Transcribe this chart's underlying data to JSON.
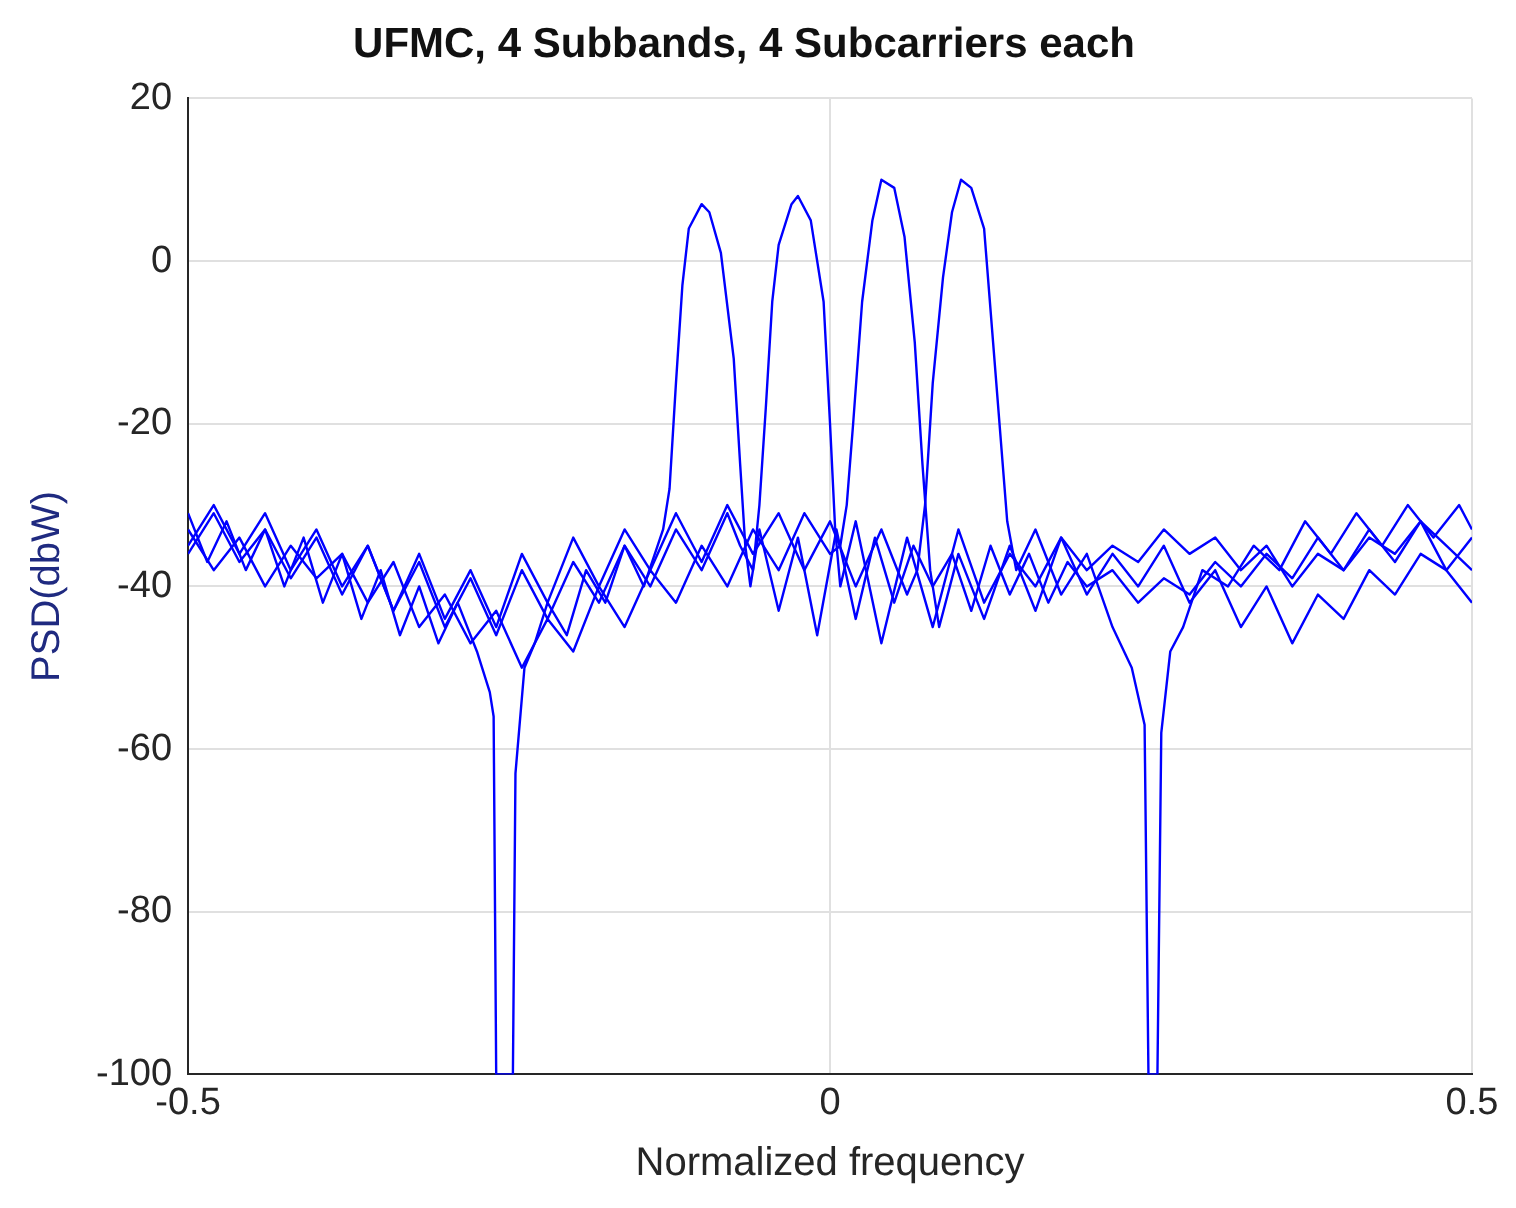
{
  "chart_data": {
    "type": "line",
    "title": "UFMC, 4 Subbands, 4 Subcarriers each",
    "xlabel": "Normalized frequency",
    "ylabel": "PSD(dbW)",
    "xlim": [
      -0.5,
      0.5
    ],
    "xticks": [
      -0.5,
      0,
      0.5
    ],
    "ylim": [
      -100,
      20
    ],
    "yticks": [
      -100,
      -80,
      -60,
      -40,
      -20,
      0,
      20
    ],
    "grid": true,
    "legend": false,
    "marker": "none",
    "line_style": "solid",
    "series": [
      {
        "color": "#0000ff",
        "x": [
          -0.5,
          -0.485,
          -0.47,
          -0.455,
          -0.44,
          -0.425,
          -0.41,
          -0.395,
          -0.38,
          -0.365,
          -0.35,
          -0.335,
          -0.32,
          -0.305,
          -0.29,
          -0.275,
          -0.265,
          -0.262,
          -0.26,
          -0.247,
          -0.245,
          -0.238,
          -0.23,
          -0.22,
          -0.205,
          -0.19,
          -0.175,
          -0.16,
          -0.145,
          -0.13,
          -0.125,
          -0.12,
          -0.115,
          -0.11,
          -0.1,
          -0.094,
          -0.085,
          -0.075,
          -0.07,
          -0.066,
          -0.062,
          -0.055,
          -0.04,
          -0.025,
          -0.01,
          0.005,
          0.02,
          0.035,
          0.05,
          0.065,
          0.08,
          0.095,
          0.11,
          0.125,
          0.14,
          0.155,
          0.17,
          0.185,
          0.2,
          0.22,
          0.24,
          0.26,
          0.28,
          0.3,
          0.32,
          0.34,
          0.36,
          0.38,
          0.4,
          0.42,
          0.44,
          0.46,
          0.48,
          0.5
        ],
        "values": [
          -31,
          -37,
          -32,
          -38,
          -33,
          -40,
          -34,
          -42,
          -36,
          -44,
          -38,
          -46,
          -40,
          -47,
          -42,
          -48,
          -53,
          -56,
          -100,
          -100,
          -63,
          -50,
          -47,
          -42,
          -46,
          -38,
          -42,
          -35,
          -40,
          -33,
          -28,
          -15,
          -3,
          4,
          7,
          6,
          1,
          -12,
          -25,
          -35,
          -40,
          -33,
          -43,
          -34,
          -46,
          -33,
          -44,
          -34,
          -42,
          -35,
          -40,
          -36,
          -43,
          -35,
          -41,
          -36,
          -42,
          -37,
          -40,
          -38,
          -42,
          -39,
          -41,
          -37,
          -40,
          -36,
          -39,
          -34,
          -38,
          -33,
          -37,
          -32,
          -38,
          -42
        ]
      },
      {
        "color": "#0000ff",
        "x": [
          -0.5,
          -0.48,
          -0.46,
          -0.44,
          -0.42,
          -0.4,
          -0.38,
          -0.36,
          -0.34,
          -0.32,
          -0.3,
          -0.28,
          -0.26,
          -0.24,
          -0.22,
          -0.2,
          -0.18,
          -0.16,
          -0.14,
          -0.12,
          -0.1,
          -0.08,
          -0.07,
          -0.06,
          -0.055,
          -0.05,
          -0.045,
          -0.04,
          -0.03,
          -0.025,
          -0.015,
          -0.005,
          0,
          0.004,
          0.008,
          0.02,
          0.04,
          0.06,
          0.08,
          0.1,
          0.12,
          0.14,
          0.16,
          0.18,
          0.2,
          0.22,
          0.24,
          0.26,
          0.28,
          0.3,
          0.32,
          0.34,
          0.36,
          0.38,
          0.4,
          0.42,
          0.44,
          0.46,
          0.48,
          0.5
        ],
        "values": [
          -35,
          -30,
          -36,
          -31,
          -38,
          -33,
          -40,
          -35,
          -43,
          -37,
          -45,
          -39,
          -46,
          -38,
          -44,
          -37,
          -42,
          -35,
          -40,
          -33,
          -38,
          -31,
          -35,
          -38,
          -30,
          -18,
          -5,
          2,
          7,
          8,
          5,
          -5,
          -20,
          -33,
          -40,
          -32,
          -47,
          -34,
          -45,
          -33,
          -42,
          -36,
          -40,
          -34,
          -38,
          -35,
          -37,
          -33,
          -36,
          -34,
          -38,
          -35,
          -40,
          -36,
          -38,
          -34,
          -36,
          -32,
          -35,
          -38
        ]
      },
      {
        "color": "#0000ff",
        "x": [
          -0.5,
          -0.48,
          -0.46,
          -0.44,
          -0.42,
          -0.4,
          -0.38,
          -0.36,
          -0.34,
          -0.32,
          -0.3,
          -0.28,
          -0.26,
          -0.24,
          -0.22,
          -0.2,
          -0.18,
          -0.16,
          -0.14,
          -0.12,
          -0.1,
          -0.08,
          -0.06,
          -0.04,
          -0.02,
          0,
          0.008,
          0.013,
          0.018,
          0.025,
          0.033,
          0.04,
          0.05,
          0.058,
          0.066,
          0.072,
          0.078,
          0.085,
          0.1,
          0.12,
          0.14,
          0.16,
          0.18,
          0.2,
          0.22,
          0.24,
          0.26,
          0.28,
          0.3,
          0.32,
          0.34,
          0.36,
          0.38,
          0.4,
          0.42,
          0.44,
          0.46,
          0.48,
          0.5
        ],
        "values": [
          -33,
          -38,
          -34,
          -40,
          -35,
          -39,
          -36,
          -42,
          -37,
          -45,
          -41,
          -47,
          -43,
          -50,
          -44,
          -48,
          -40,
          -45,
          -38,
          -42,
          -35,
          -40,
          -33,
          -38,
          -31,
          -36,
          -35,
          -30,
          -20,
          -5,
          5,
          10,
          9,
          3,
          -10,
          -25,
          -38,
          -45,
          -36,
          -44,
          -35,
          -43,
          -34,
          -41,
          -36,
          -40,
          -35,
          -42,
          -38,
          -45,
          -40,
          -47,
          -41,
          -44,
          -38,
          -41,
          -36,
          -38,
          -34
        ]
      },
      {
        "color": "#0000ff",
        "x": [
          -0.5,
          -0.48,
          -0.46,
          -0.44,
          -0.42,
          -0.4,
          -0.38,
          -0.36,
          -0.34,
          -0.32,
          -0.3,
          -0.28,
          -0.26,
          -0.24,
          -0.22,
          -0.2,
          -0.18,
          -0.16,
          -0.14,
          -0.12,
          -0.1,
          -0.08,
          -0.06,
          -0.04,
          -0.02,
          0,
          0.02,
          0.04,
          0.06,
          0.068,
          0.074,
          0.08,
          0.088,
          0.095,
          0.102,
          0.11,
          0.12,
          0.127,
          0.133,
          0.138,
          0.145,
          0.16,
          0.18,
          0.2,
          0.22,
          0.235,
          0.245,
          0.248,
          0.255,
          0.258,
          0.265,
          0.275,
          0.29,
          0.31,
          0.33,
          0.35,
          0.37,
          0.39,
          0.41,
          0.43,
          0.45,
          0.47,
          0.49,
          0.5
        ],
        "values": [
          -36,
          -31,
          -37,
          -33,
          -39,
          -34,
          -41,
          -35,
          -43,
          -36,
          -44,
          -38,
          -45,
          -36,
          -42,
          -34,
          -40,
          -33,
          -38,
          -31,
          -37,
          -30,
          -36,
          -31,
          -38,
          -32,
          -40,
          -33,
          -41,
          -38,
          -30,
          -15,
          -2,
          6,
          10,
          9,
          4,
          -10,
          -22,
          -32,
          -38,
          -33,
          -41,
          -36,
          -45,
          -50,
          -57,
          -100,
          -100,
          -58,
          -48,
          -45,
          -38,
          -40,
          -35,
          -38,
          -32,
          -36,
          -31,
          -35,
          -30,
          -34,
          -30,
          -33
        ]
      }
    ]
  }
}
